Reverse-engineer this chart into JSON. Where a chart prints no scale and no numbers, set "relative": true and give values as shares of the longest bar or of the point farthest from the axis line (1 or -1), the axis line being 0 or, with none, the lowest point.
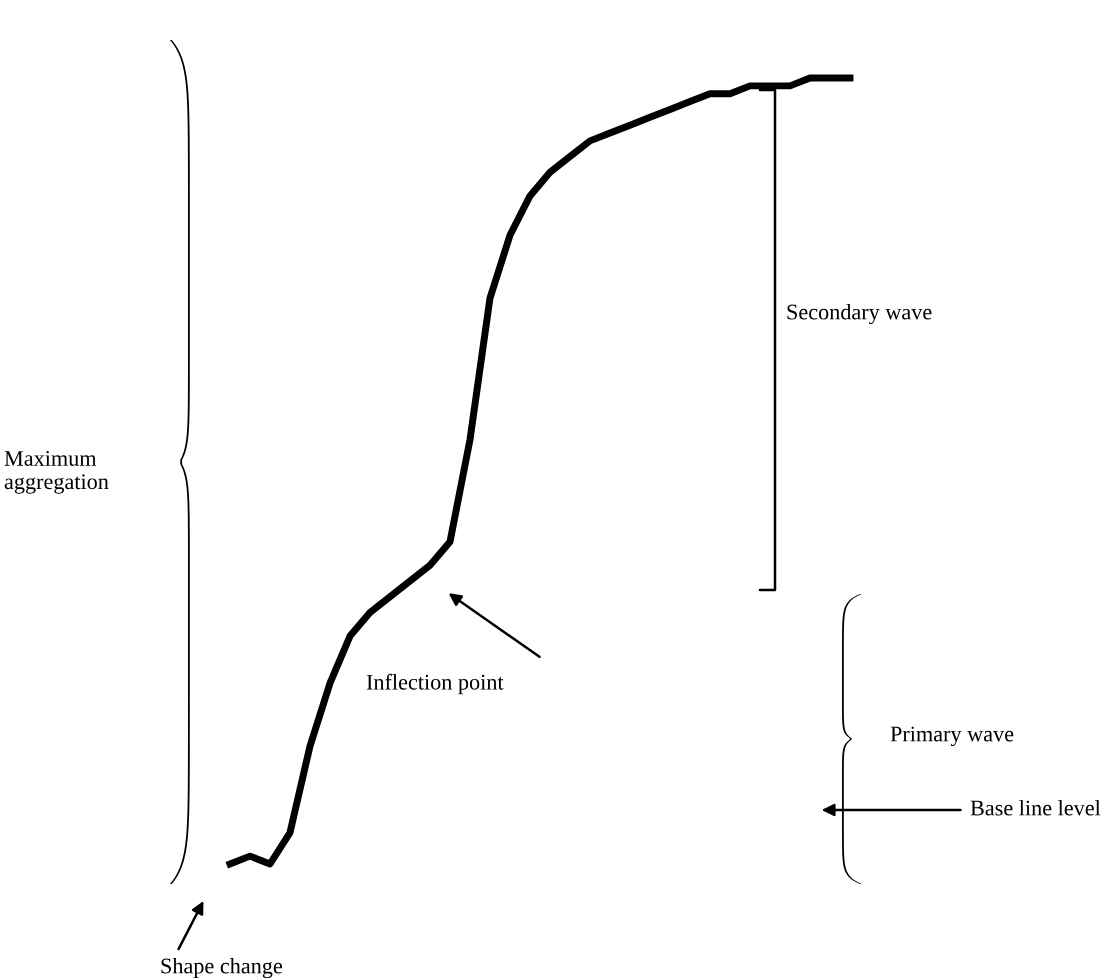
{
  "chart_data": {
    "type": "line",
    "relative": true,
    "categories": [
      null,
      null,
      null,
      null,
      null,
      null,
      null,
      null,
      null,
      null,
      null,
      null,
      null,
      null,
      null,
      null,
      null,
      null,
      null,
      null,
      null,
      null,
      null,
      null,
      null,
      null,
      null,
      null,
      null,
      null,
      null,
      null
    ],
    "series": [
      {
        "color": "#000000",
        "values": [
          0,
          0.01,
          0,
          0.04,
          0.15,
          0.23,
          0.29,
          0.32,
          0.34,
          0.36,
          0.38,
          0.41,
          0.54,
          0.72,
          0.8,
          0.85,
          0.88,
          0.9,
          0.92,
          0.93,
          0.94,
          0.95,
          0.96,
          0.97,
          0.98,
          0.98,
          0.99,
          0.99,
          0.99,
          1.0,
          1.0,
          1.0
        ]
      }
    ],
    "annotations": [
      "Maximum\naggregation",
      "Secondary wave",
      "Primary wave",
      "Inflection point",
      "Base line level",
      "Shape change"
    ],
    "grid": false,
    "legend": false
  }
}
